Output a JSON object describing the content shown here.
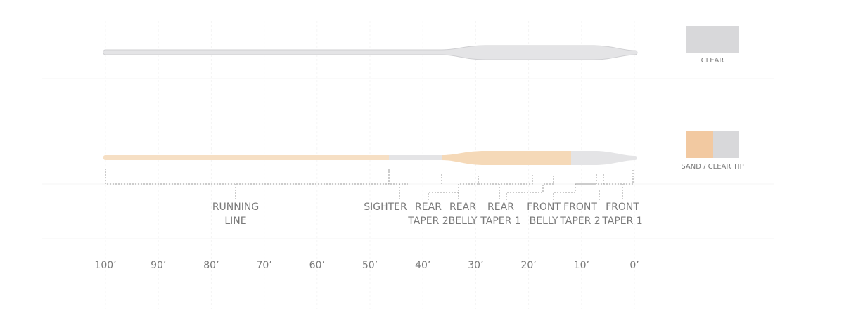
{
  "swatches": [
    {
      "label": "CLEAR"
    },
    {
      "label": "SAND / CLEAR TIP"
    }
  ],
  "segments": [
    {
      "lines": [
        "RUNNING",
        "LINE"
      ]
    },
    {
      "lines": [
        "SIGHTER"
      ]
    },
    {
      "lines": [
        "REAR",
        "TAPER 2"
      ]
    },
    {
      "lines": [
        "REAR",
        "BELLY"
      ]
    },
    {
      "lines": [
        "REAR",
        "TAPER 1"
      ]
    },
    {
      "lines": [
        "FRONT",
        "BELLY"
      ]
    },
    {
      "lines": [
        "FRONT",
        "TAPER 2"
      ]
    },
    {
      "lines": [
        "FRONT",
        "TAPER 1"
      ]
    }
  ],
  "axis": {
    "labels": [
      "100’",
      "90’",
      "80’",
      "70’",
      "60’",
      "50’",
      "40’",
      "30’",
      "20’",
      "10’",
      "0’"
    ]
  }
}
